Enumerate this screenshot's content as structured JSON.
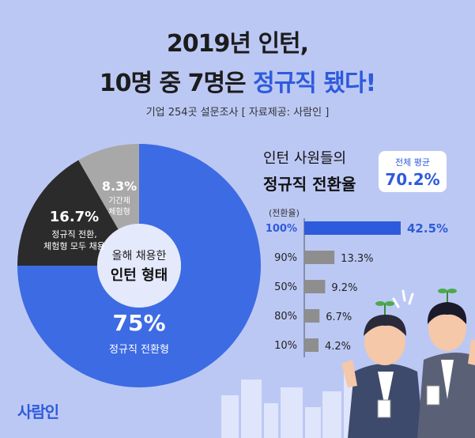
{
  "header": {
    "title_line1": "2019년 인턴,",
    "title_line2_prefix": "10명 중 7명은 ",
    "title_line2_accent": "정규직 됐다!",
    "subtitle": "기업 254곳 설문조사 [ 자료제공: 사람인 ]"
  },
  "logo": "사람인",
  "chart_data": [
    {
      "type": "pie",
      "title": "올해 채용한 인턴 형태",
      "center_label_line1": "올해 채용한",
      "center_label_line2": "인턴 형태",
      "slices": [
        {
          "value": 75,
          "label": "75%",
          "name": "정규직 전환형",
          "color": "#3d6be3"
        },
        {
          "value": 16.7,
          "label": "16.7%",
          "name_lines": [
            "정규직 전환,",
            "체험형 모두 채용"
          ],
          "color": "#2b2b2b"
        },
        {
          "value": 8.3,
          "label": "8.3%",
          "name_lines": [
            "기간제",
            "체험형"
          ],
          "color": "#a8a8a8"
        }
      ]
    },
    {
      "type": "bar",
      "title_line1": "인턴 사원들의",
      "title_line2": "정규직 전환율",
      "axis_label": "(전환율)",
      "categories": [
        "100%",
        "90%",
        "50%",
        "80%",
        "10%"
      ],
      "values": [
        42.5,
        13.3,
        9.2,
        6.7,
        4.2
      ],
      "value_labels": [
        "42.5%",
        "13.3%",
        "9.2%",
        "6.7%",
        "4.2%"
      ],
      "highlight_index": 0,
      "highlight_color": "#2e5bdc",
      "bar_color": "#8e8e8e",
      "average": {
        "label": "전체 평균",
        "value": "70.2%"
      }
    }
  ]
}
